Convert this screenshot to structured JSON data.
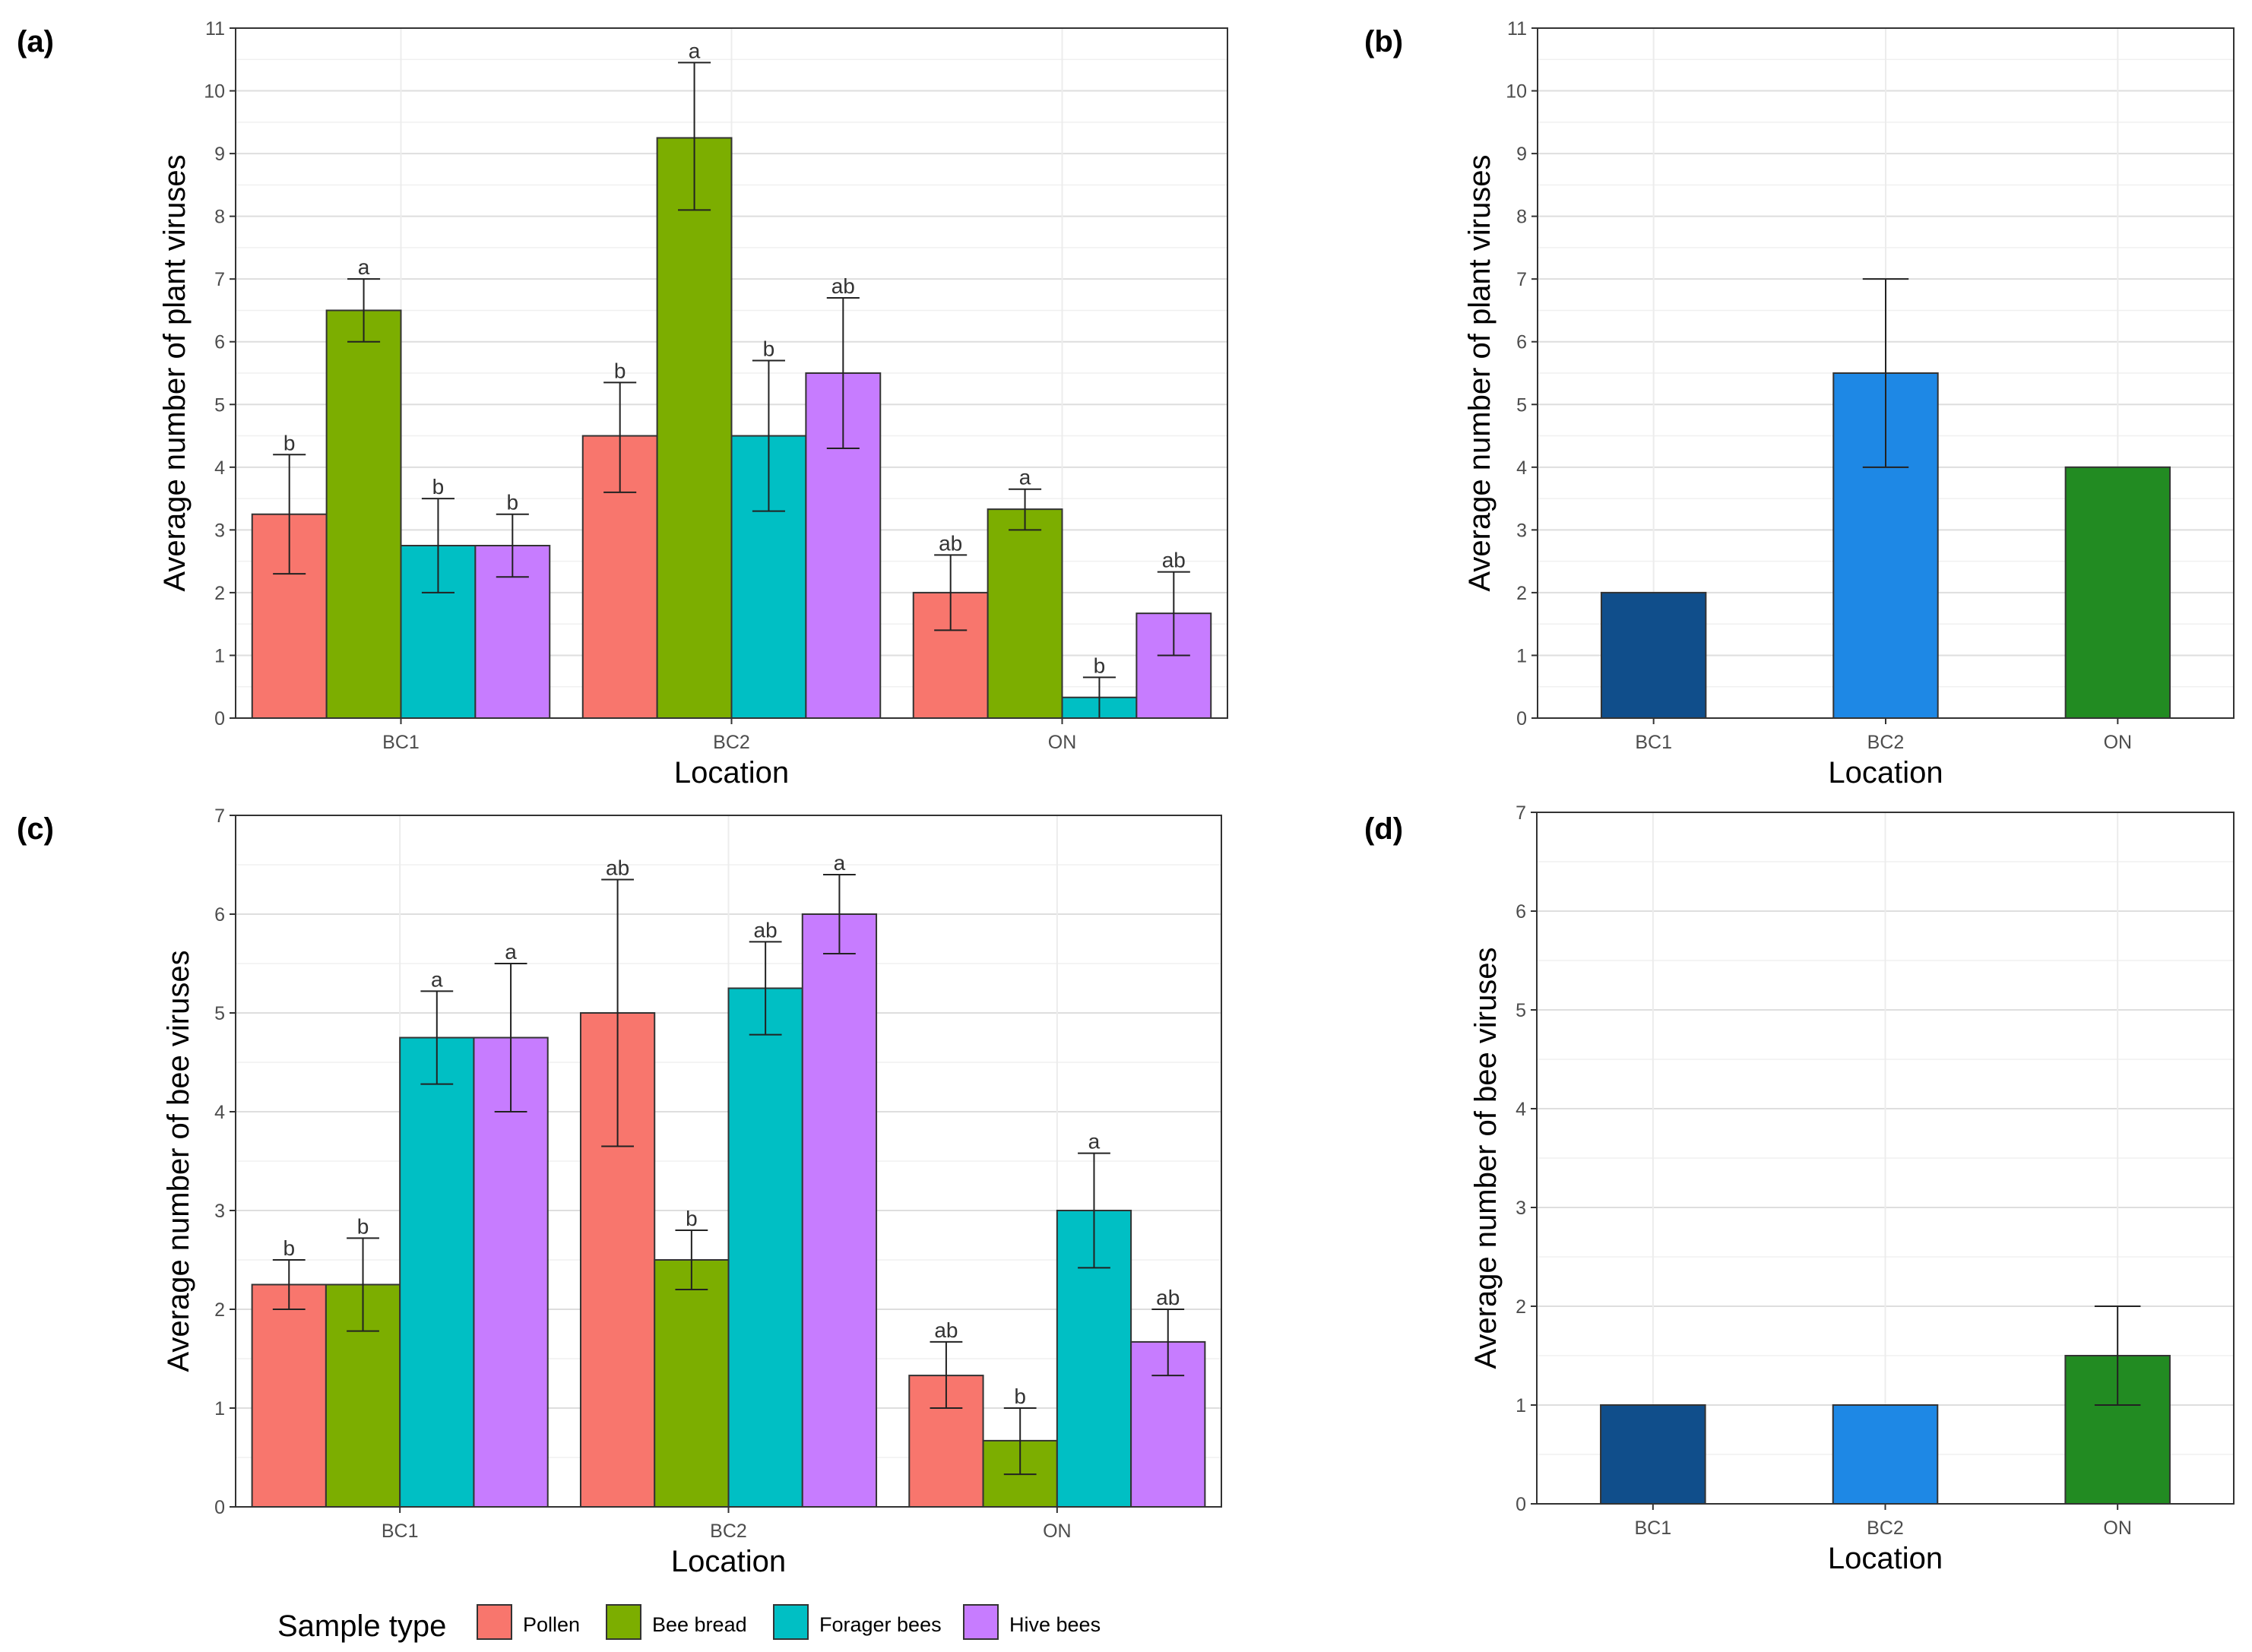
{
  "legend": {
    "title": "Sample type",
    "items": [
      {
        "name": "Pollen",
        "color": "#F8766D"
      },
      {
        "name": "Bee bread",
        "color": "#7CAE00"
      },
      {
        "name": "Forager bees",
        "color": "#00BFC4"
      },
      {
        "name": "Hive bees",
        "color": "#C77CFF"
      }
    ]
  },
  "chart_data": [
    {
      "panel": "(a)",
      "type": "bar",
      "grouped": true,
      "xlabel": "Location",
      "ylabel": "Average number of plant viruses",
      "categories": [
        "BC1",
        "BC2",
        "ON"
      ],
      "ylim": [
        0,
        11
      ],
      "yticks": [
        0,
        1,
        2,
        3,
        4,
        5,
        6,
        7,
        8,
        9,
        10,
        11
      ],
      "series": [
        {
          "name": "Pollen",
          "color": "#F8766D",
          "values": [
            3.25,
            4.5,
            2.0
          ],
          "err_low": [
            2.3,
            3.6,
            1.4
          ],
          "err_high": [
            4.2,
            5.35,
            2.6
          ],
          "labels": [
            "b",
            "b",
            "ab"
          ]
        },
        {
          "name": "Bee bread",
          "color": "#7CAE00",
          "values": [
            6.5,
            9.25,
            3.33
          ],
          "err_low": [
            6.0,
            8.1,
            3.0
          ],
          "err_high": [
            7.0,
            10.45,
            3.65
          ],
          "labels": [
            "a",
            "a",
            "a"
          ]
        },
        {
          "name": "Forager bees",
          "color": "#00BFC4",
          "values": [
            2.75,
            4.5,
            0.33
          ],
          "err_low": [
            2.0,
            3.3,
            0.0
          ],
          "err_high": [
            3.5,
            5.7,
            0.65
          ],
          "labels": [
            "b",
            "b",
            "b"
          ]
        },
        {
          "name": "Hive bees",
          "color": "#C77CFF",
          "values": [
            2.75,
            5.5,
            1.67
          ],
          "err_low": [
            2.25,
            4.3,
            1.0
          ],
          "err_high": [
            3.25,
            6.7,
            2.33
          ],
          "labels": [
            "b",
            "ab",
            "ab"
          ]
        }
      ]
    },
    {
      "panel": "(b)",
      "type": "bar",
      "grouped": false,
      "xlabel": "Location",
      "ylabel": "Average number of plant viruses",
      "categories": [
        "BC1",
        "BC2",
        "ON"
      ],
      "ylim": [
        0,
        11
      ],
      "yticks": [
        0,
        1,
        2,
        3,
        4,
        5,
        6,
        7,
        8,
        9,
        10,
        11
      ],
      "series": [
        {
          "name": "Location",
          "colors": [
            "#104E8B",
            "#1E88E5",
            "#228B22"
          ],
          "values": [
            2.0,
            5.5,
            4.0
          ],
          "err_low": [
            null,
            4.0,
            null
          ],
          "err_high": [
            null,
            7.0,
            null
          ]
        }
      ]
    },
    {
      "panel": "(c)",
      "type": "bar",
      "grouped": true,
      "xlabel": "Location",
      "ylabel": "Average number of bee viruses",
      "categories": [
        "BC1",
        "BC2",
        "ON"
      ],
      "ylim": [
        0,
        7
      ],
      "yticks": [
        0,
        1,
        2,
        3,
        4,
        5,
        6,
        7
      ],
      "series": [
        {
          "name": "Pollen",
          "color": "#F8766D",
          "values": [
            2.25,
            5.0,
            1.33
          ],
          "err_low": [
            2.0,
            3.65,
            1.0
          ],
          "err_high": [
            2.5,
            6.35,
            1.67
          ],
          "labels": [
            "b",
            "ab",
            "ab"
          ]
        },
        {
          "name": "Bee bread",
          "color": "#7CAE00",
          "values": [
            2.25,
            2.5,
            0.67
          ],
          "err_low": [
            1.78,
            2.2,
            0.33
          ],
          "err_high": [
            2.72,
            2.8,
            1.0
          ],
          "labels": [
            "b",
            "b",
            "b"
          ]
        },
        {
          "name": "Forager bees",
          "color": "#00BFC4",
          "values": [
            4.75,
            5.25,
            3.0
          ],
          "err_low": [
            4.28,
            4.78,
            2.42
          ],
          "err_high": [
            5.22,
            5.72,
            3.58
          ],
          "labels": [
            "a",
            "ab",
            "a"
          ]
        },
        {
          "name": "Hive bees",
          "color": "#C77CFF",
          "values": [
            4.75,
            6.0,
            1.67
          ],
          "err_low": [
            4.0,
            5.6,
            1.33
          ],
          "err_high": [
            5.5,
            6.4,
            2.0
          ],
          "labels": [
            "a",
            "a",
            "ab"
          ]
        }
      ]
    },
    {
      "panel": "(d)",
      "type": "bar",
      "grouped": false,
      "xlabel": "Location",
      "ylabel": "Average number of bee viruses",
      "categories": [
        "BC1",
        "BC2",
        "ON"
      ],
      "ylim": [
        0,
        7
      ],
      "yticks": [
        0,
        1,
        2,
        3,
        4,
        5,
        6,
        7
      ],
      "series": [
        {
          "name": "Location",
          "colors": [
            "#104E8B",
            "#1E88E5",
            "#228B22"
          ],
          "values": [
            1.0,
            1.0,
            1.5
          ],
          "err_low": [
            null,
            null,
            1.0
          ],
          "err_high": [
            null,
            null,
            2.0
          ]
        }
      ]
    }
  ]
}
